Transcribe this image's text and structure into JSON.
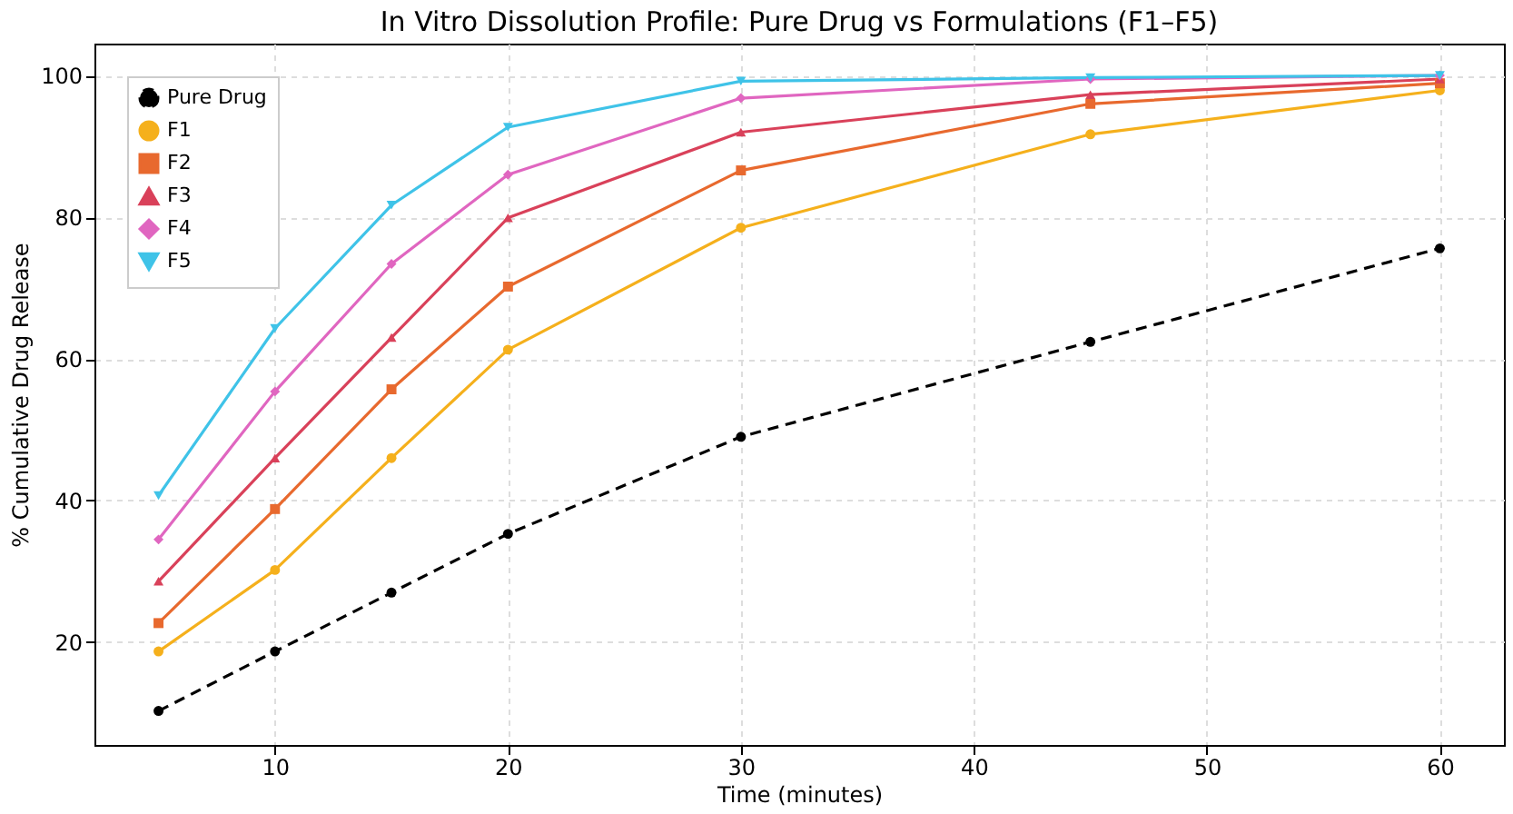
{
  "chart_data": {
    "type": "line",
    "title": "In Vitro Dissolution Profile: Pure Drug vs Formulations (F1–F5)",
    "xlabel": "Time (minutes)",
    "ylabel": "% Cumulative Drug Release",
    "x": [
      5,
      10,
      15,
      20,
      30,
      45,
      60
    ],
    "series": [
      {
        "name": "Pure Drug",
        "color": "#000000",
        "marker": "circle",
        "line_style": "dashed",
        "values": [
          10.3,
          18.7,
          27,
          35.3,
          49,
          62.4,
          75.6
        ]
      },
      {
        "name": "F1",
        "color": "#f5b01c",
        "marker": "circle",
        "line_style": "solid",
        "values": [
          18.7,
          30.2,
          46,
          61.3,
          78.5,
          91.7,
          97.9
        ]
      },
      {
        "name": "F2",
        "color": "#e8692e",
        "marker": "square",
        "line_style": "solid",
        "values": [
          22.7,
          38.8,
          55.7,
          70.2,
          86.6,
          96,
          98.9
        ]
      },
      {
        "name": "F3",
        "color": "#d9415a",
        "marker": "triangle",
        "line_style": "solid",
        "values": [
          28.6,
          46,
          63,
          79.9,
          92,
          97.3,
          99.5
        ]
      },
      {
        "name": "F4",
        "color": "#e066c0",
        "marker": "diamond",
        "line_style": "solid",
        "values": [
          34.5,
          55.4,
          73.4,
          86,
          96.8,
          99.5,
          100
        ]
      },
      {
        "name": "F5",
        "color": "#3fc3e8",
        "marker": "triangle-down",
        "line_style": "solid",
        "values": [
          40.7,
          64.3,
          81.7,
          92.7,
          99.2,
          99.7,
          100
        ]
      }
    ],
    "xlim": [
      2.25,
      62.75
    ],
    "ylim": [
      5.5,
      104.5
    ],
    "xticks": [
      10,
      20,
      30,
      40,
      50,
      60
    ],
    "yticks": [
      20,
      40,
      60,
      80,
      100
    ],
    "grid": true,
    "legend": "top left"
  }
}
